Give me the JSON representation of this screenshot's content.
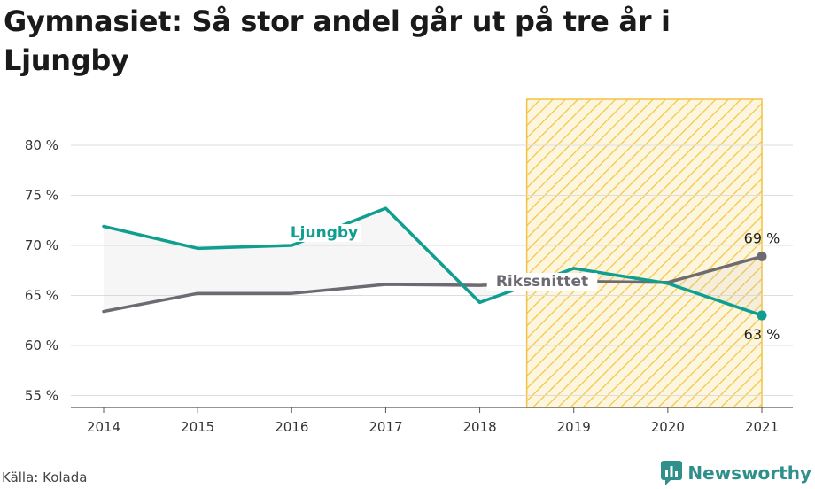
{
  "title": "Gymnasiet: Så stor andel går ut på tre år i Ljungby",
  "source": "Källa: Kolada",
  "brand": "Newsworthy",
  "colors": {
    "ljungby": "#0f9e90",
    "riks": "#6d6a72",
    "highlight_stripe": "#f5c542",
    "highlight_border": "#f3c244"
  },
  "chart_data": {
    "type": "line",
    "x": [
      "2014",
      "2015",
      "2016",
      "2017",
      "2018",
      "2019",
      "2020",
      "2021"
    ],
    "series": [
      {
        "name": "Ljungby",
        "values": [
          71.9,
          69.7,
          70.0,
          73.7,
          64.3,
          67.7,
          66.2,
          63.0
        ]
      },
      {
        "name": "Rikssnittet",
        "values": [
          63.4,
          65.2,
          65.2,
          66.1,
          66.0,
          66.4,
          66.3,
          68.9
        ]
      }
    ],
    "ylim": [
      53.8,
      84.6
    ],
    "yticks": [
      55,
      60,
      65,
      70,
      75,
      80
    ],
    "ytick_labels": [
      "55 %",
      "60 %",
      "65 %",
      "70 %",
      "75 %",
      "80 %"
    ],
    "end_labels": {
      "Ljungby": "63 %",
      "Rikssnittet": "69 %"
    },
    "highlight_range": [
      "2019",
      "2021"
    ],
    "grid": true
  }
}
